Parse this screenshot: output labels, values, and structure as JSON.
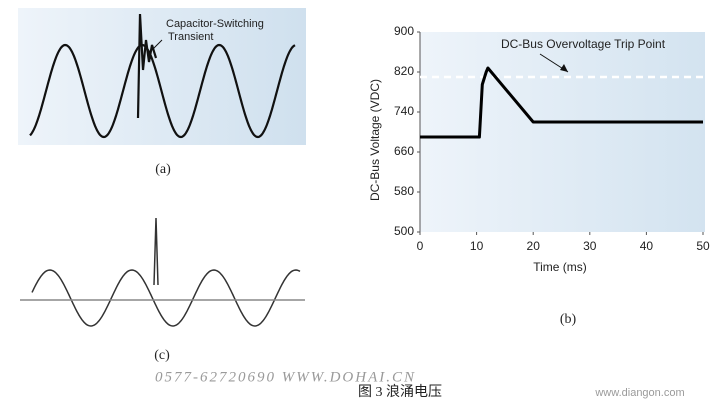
{
  "chart_data": {
    "type": "line",
    "annotation": "DC-Bus Overvoltage Trip Point",
    "trip_level": 810,
    "x_label": "Time (ms)",
    "y_label": "DC-Bus Voltage (VDC)",
    "x": [
      0,
      10.5,
      11,
      11.7,
      12,
      20,
      50
    ],
    "values": [
      690,
      690,
      795,
      820,
      828,
      720,
      720
    ],
    "color": "#000000",
    "xlim": [
      0,
      50
    ],
    "xticks": [
      0,
      10,
      20,
      30,
      40,
      50
    ],
    "ylim": [
      500,
      900
    ],
    "yticks": [
      500,
      580,
      660,
      740,
      820,
      900
    ]
  },
  "figure": {
    "panel_a": {
      "label": "(a)",
      "annotation": "Capacitor-Switching Transient"
    },
    "panel_b": {
      "label": "(b)"
    },
    "panel_c": {
      "label": "(c)"
    },
    "caption": "图 3  浪涌电压",
    "watermarks": [
      "0577-62720690  WWW.DOHAI.CN",
      "www.diangon.com"
    ]
  }
}
